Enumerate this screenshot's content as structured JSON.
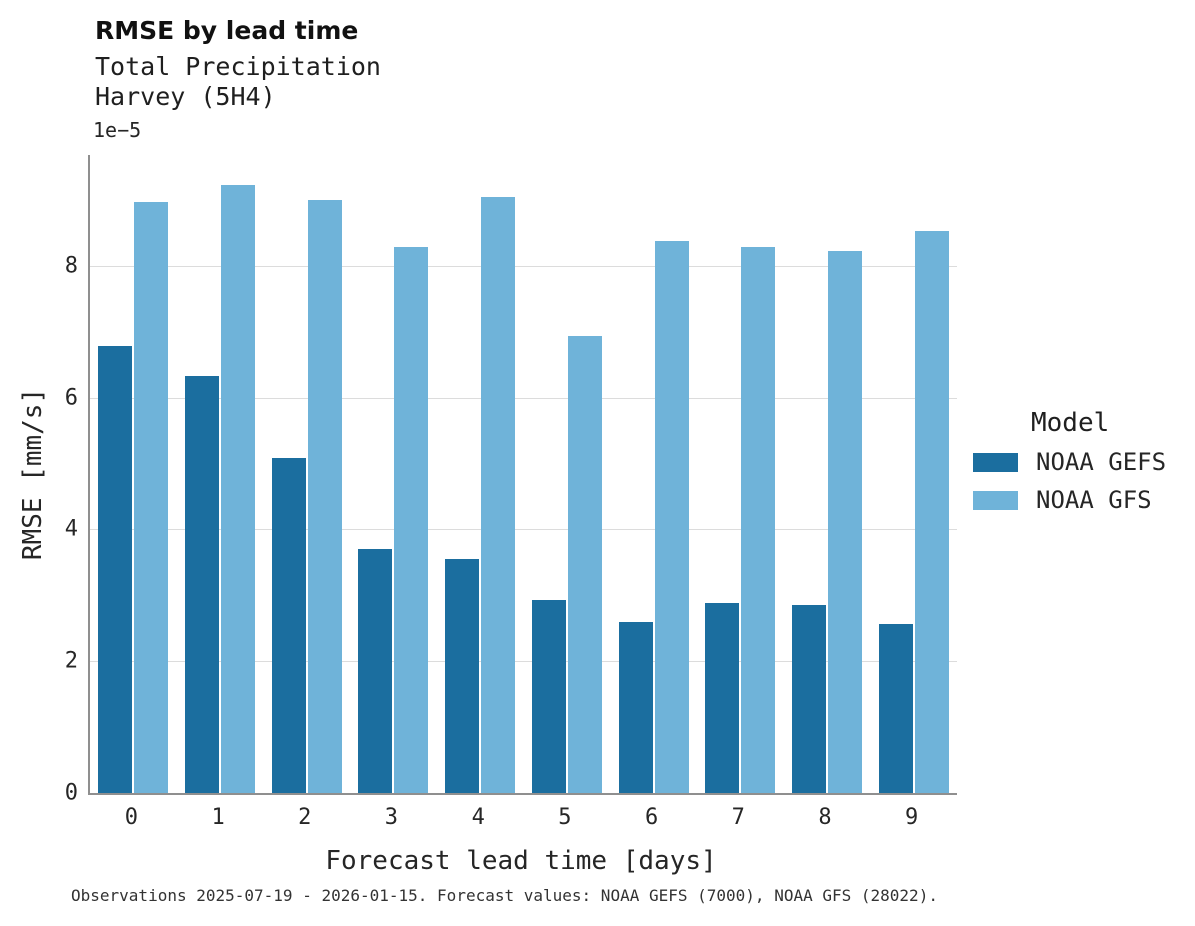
{
  "title": "RMSE by lead time",
  "subtitle_line1": "Total Precipitation",
  "subtitle_line2": "Harvey (5H4)",
  "offset_label": "1e−5",
  "caption": "Observations 2025-07-19 - 2026-01-15. Forecast values: NOAA GEFS (7000), NOAA GFS (28022).",
  "legend": {
    "title": "Model",
    "entries": [
      {
        "label": "NOAA GEFS",
        "color": "#1b6e9f"
      },
      {
        "label": "NOAA GFS",
        "color": "#6fb3d9"
      }
    ]
  },
  "chart_data": {
    "type": "bar",
    "title": "RMSE by lead time",
    "subtitle": "Total Precipitation / Harvey (5H4)",
    "categories": [
      "0",
      "1",
      "2",
      "3",
      "4",
      "5",
      "6",
      "7",
      "8",
      "9"
    ],
    "series": [
      {
        "name": "NOAA GEFS",
        "color": "#1b6e9f",
        "values": [
          6.78,
          6.33,
          5.08,
          3.7,
          3.55,
          2.93,
          2.6,
          2.88,
          2.86,
          2.57
        ]
      },
      {
        "name": "NOAA GFS",
        "color": "#6fb3d9",
        "values": [
          8.97,
          9.23,
          9.0,
          8.28,
          9.05,
          6.93,
          8.38,
          8.28,
          8.22,
          8.53
        ]
      }
    ],
    "value_scale": "1e-5",
    "xlabel": "Forecast lead time [days]",
    "ylabel": "RMSE [mm/s]",
    "yticks": [
      0,
      2,
      4,
      6,
      8
    ],
    "ylim": [
      0,
      9.68
    ],
    "grid": true,
    "legend_position": "right"
  }
}
